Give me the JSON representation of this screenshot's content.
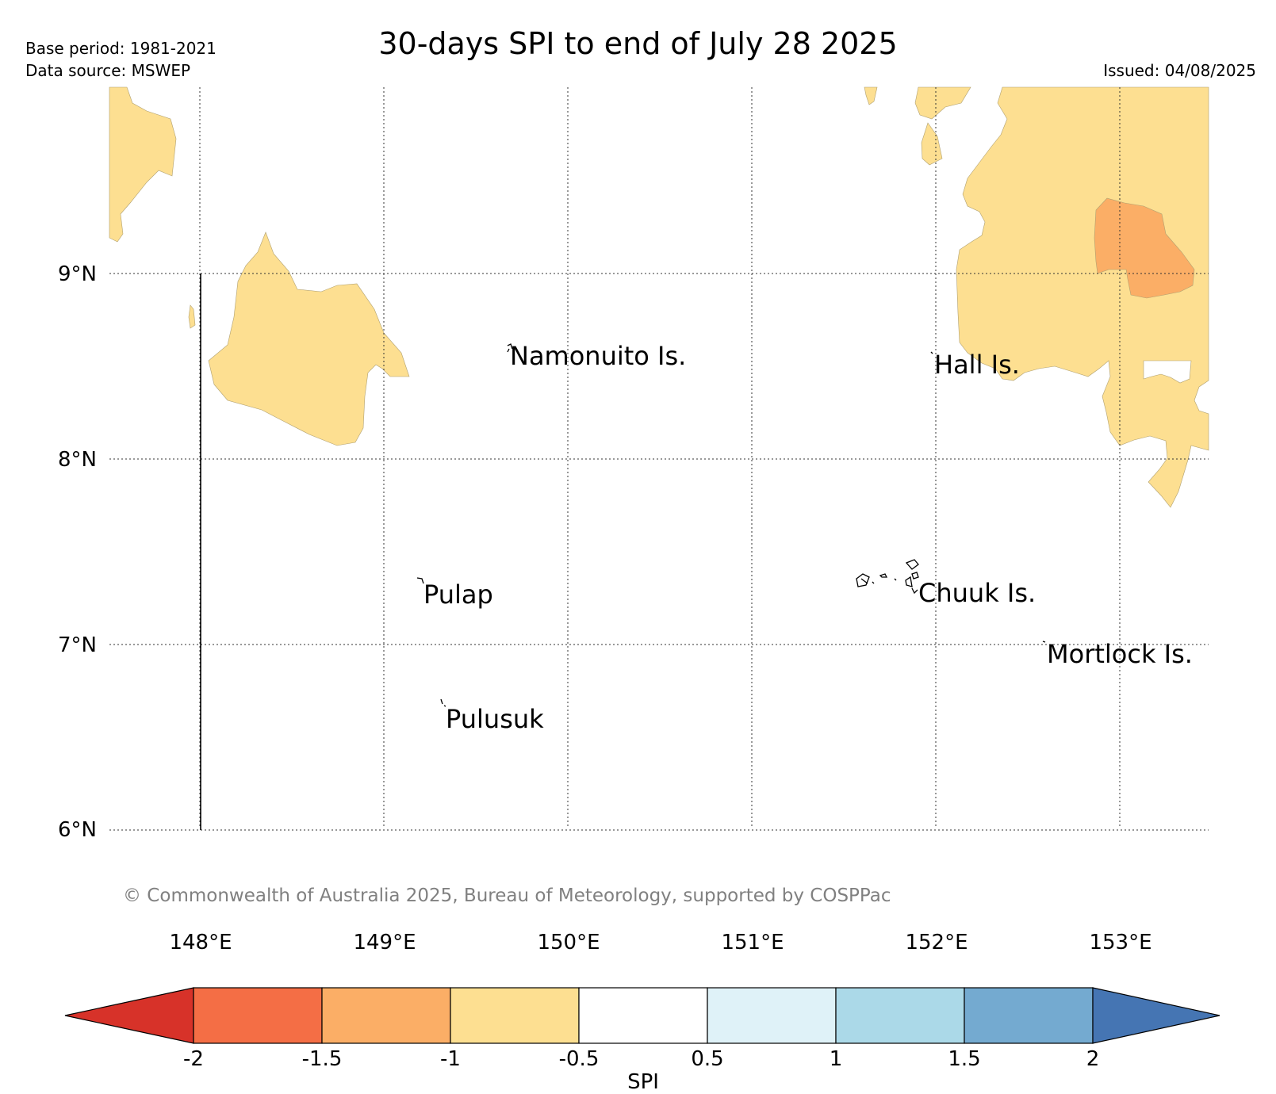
{
  "header": {
    "title": "30-days SPI to end of July 28 2025",
    "base_period": "Base period: 1981-2021",
    "data_source": "Data source: MSWEP",
    "issued": "Issued: 04/08/2025"
  },
  "map": {
    "lat_labels": [
      "9°N",
      "8°N",
      "7°N",
      "6°N"
    ],
    "lon_labels": [
      "148°E",
      "149°E",
      "150°E",
      "151°E",
      "152°E",
      "153°E"
    ],
    "places": [
      {
        "name": "Namonuito Is."
      },
      {
        "name": "Hall Is."
      },
      {
        "name": "Pulap"
      },
      {
        "name": "Chuuk Is."
      },
      {
        "name": "Mortlock Is."
      },
      {
        "name": "Pulusuk"
      }
    ],
    "copyright": "© Commonwealth of Australia 2025, Bureau of Meteorology, supported by COSPPac",
    "colors": {
      "spi_-1_to_-0.5": "#fddf91",
      "spi_-1.5_to_-1": "#fbae66"
    }
  },
  "colorbar": {
    "label": "SPI",
    "ticks": [
      "-2",
      "-1.5",
      "-1",
      "-0.5",
      "0.5",
      "1",
      "1.5",
      "2"
    ],
    "colors": [
      "#d73229",
      "#f46e45",
      "#fbae66",
      "#fddf91",
      "#ffffff",
      "#dff2f8",
      "#abd9e8",
      "#74aad0",
      "#4575b3"
    ]
  }
}
